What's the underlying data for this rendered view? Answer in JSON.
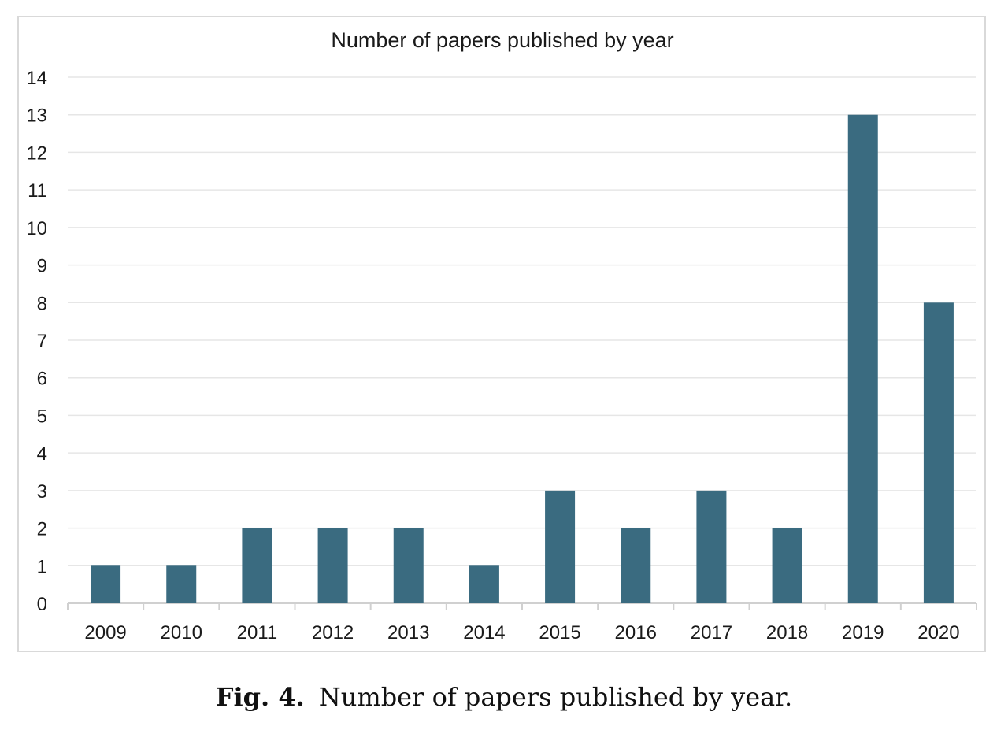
{
  "figure": {
    "caption_label": "Fig. 4.",
    "caption_text": "Number of papers published by year."
  },
  "colors": {
    "bar": "#3a6b80",
    "grid": "#e6e6e6",
    "axis": "#d0d0d0",
    "text": "#1a1a1a"
  },
  "chart_data": {
    "type": "bar",
    "title": "Number of papers published by year",
    "xlabel": "",
    "ylabel": "",
    "categories": [
      "2009",
      "2010",
      "2011",
      "2012",
      "2013",
      "2014",
      "2015",
      "2016",
      "2017",
      "2018",
      "2019",
      "2020"
    ],
    "values": [
      1,
      1,
      2,
      2,
      2,
      1,
      3,
      2,
      3,
      2,
      13,
      8
    ],
    "ylim": [
      0,
      14
    ],
    "yticks": [
      0,
      1,
      2,
      3,
      4,
      5,
      6,
      7,
      8,
      9,
      10,
      11,
      12,
      13,
      14
    ],
    "grid": true,
    "legend": "none"
  }
}
